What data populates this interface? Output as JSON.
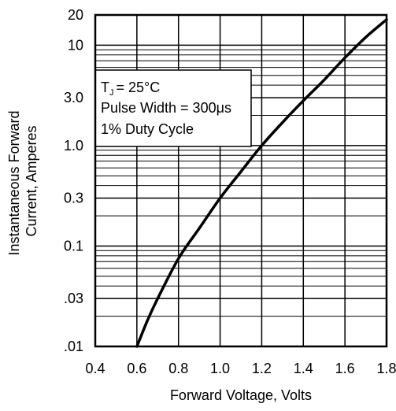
{
  "chart_data": {
    "type": "line",
    "title": "",
    "xlabel": "Forward Voltage, Volts",
    "ylabel_lines": [
      "Instantaneous Forward",
      "Current, Amperes"
    ],
    "xlim": [
      0.4,
      1.8
    ],
    "ylim": [
      0.01,
      20
    ],
    "y_scale": "log",
    "grid": true,
    "x_ticks": [
      {
        "value": 0.4,
        "label": "0.4"
      },
      {
        "value": 0.6,
        "label": "0.6"
      },
      {
        "value": 0.8,
        "label": "0.8"
      },
      {
        "value": 1.0,
        "label": "1.0"
      },
      {
        "value": 1.2,
        "label": "1.2"
      },
      {
        "value": 1.4,
        "label": "1.4"
      },
      {
        "value": 1.6,
        "label": "1.6"
      },
      {
        "value": 1.8,
        "label": "1.8"
      }
    ],
    "y_ticks": [
      {
        "value": 0.01,
        "label": ".01"
      },
      {
        "value": 0.03,
        "label": ".03"
      },
      {
        "value": 0.1,
        "label": "0.1"
      },
      {
        "value": 0.3,
        "label": "0.3"
      },
      {
        "value": 1.0,
        "label": "1.0"
      },
      {
        "value": 3.0,
        "label": "3.0"
      },
      {
        "value": 10,
        "label": "10"
      },
      {
        "value": 20,
        "label": "20"
      }
    ],
    "y_minor_grid": [
      0.02,
      0.04,
      0.05,
      0.06,
      0.07,
      0.08,
      0.09,
      0.2,
      0.4,
      0.5,
      0.6,
      0.7,
      0.8,
      0.9,
      2,
      4,
      5,
      6,
      7,
      8,
      9
    ],
    "series": [
      {
        "x": [
          0.6,
          0.65,
          0.7,
          0.8,
          0.9,
          1.0,
          1.1,
          1.2,
          1.3,
          1.4,
          1.5,
          1.6,
          1.7,
          1.8
        ],
        "values": [
          0.01,
          0.018,
          0.03,
          0.075,
          0.15,
          0.3,
          0.55,
          1.0,
          1.7,
          2.8,
          4.5,
          7.5,
          12,
          18
        ]
      }
    ],
    "annotation_lines": [
      "= 25°C",
      "Pulse Width = 300μs",
      "1% Duty Cycle"
    ],
    "annotation_symbol": "T",
    "annotation_subscript": "J",
    "line_color": "#000000",
    "grid_color": "#000000"
  }
}
